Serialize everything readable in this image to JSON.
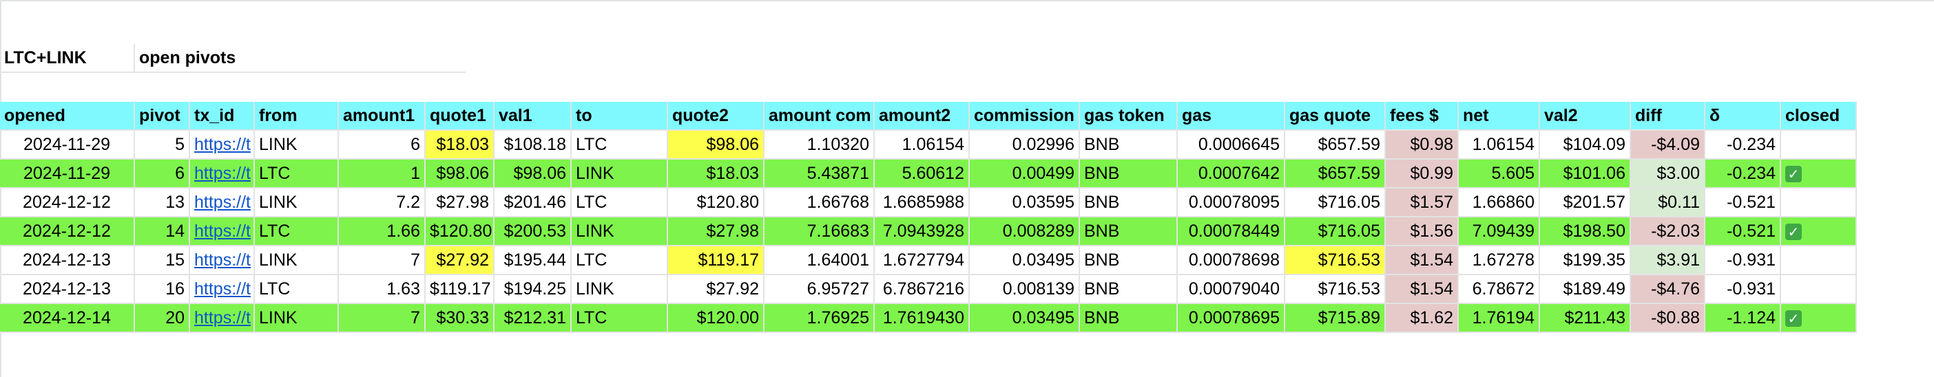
{
  "title": {
    "a": "LTC+LINK",
    "b": "open pivots"
  },
  "columns": [
    "opened",
    "pivot",
    "tx_id",
    "from",
    "amount1",
    "quote1",
    "val1",
    "to",
    "quote2",
    "amount com",
    "amount2",
    "commission",
    "gas token",
    "gas",
    "gas quote",
    "fees $",
    "net",
    "val2",
    "diff",
    "δ",
    "closed"
  ],
  "rows": [
    {
      "opened": "2024-11-29",
      "pivot": "5",
      "tx_id": "https://t",
      "from": "LINK",
      "amount1": "6",
      "quote1": "$18.03",
      "val1": "$108.18",
      "to": "LTC",
      "quote2": "$98.06",
      "amount_com": "1.10320",
      "amount2": "1.06154",
      "commission": "0.02996",
      "gas_token": "BNB",
      "gas": "0.0006645",
      "gas_quote": "$657.59",
      "fees": "$0.98",
      "net": "1.06154",
      "val2": "$104.09",
      "diff": "-$4.09",
      "delta": "-0.234",
      "closed": ""
    },
    {
      "opened": "2024-11-29",
      "pivot": "6",
      "tx_id": "https://t",
      "from": "LTC",
      "amount1": "1",
      "quote1": "$98.06",
      "val1": "$98.06",
      "to": "LINK",
      "quote2": "$18.03",
      "amount_com": "5.43871",
      "amount2": "5.60612",
      "commission": "0.00499",
      "gas_token": "BNB",
      "gas": "0.0007642",
      "gas_quote": "$657.59",
      "fees": "$0.99",
      "net": "5.605",
      "val2": "$101.06",
      "diff": "$3.00",
      "delta": "-0.234",
      "closed": "✓"
    },
    {
      "opened": "2024-12-12",
      "pivot": "13",
      "tx_id": "https://t",
      "from": "LINK",
      "amount1": "7.2",
      "quote1": "$27.98",
      "val1": "$201.46",
      "to": "LTC",
      "quote2": "$120.80",
      "amount_com": "1.66768",
      "amount2": "1.6685988",
      "commission": "0.03595",
      "gas_token": "BNB",
      "gas": "0.00078095",
      "gas_quote": "$716.05",
      "fees": "$1.57",
      "net": "1.66860",
      "val2": "$201.57",
      "diff": "$0.11",
      "delta": "-0.521",
      "closed": ""
    },
    {
      "opened": "2024-12-12",
      "pivot": "14",
      "tx_id": "https://t",
      "from": "LTC",
      "amount1": "1.66",
      "quote1": "$120.80",
      "val1": "$200.53",
      "to": "LINK",
      "quote2": "$27.98",
      "amount_com": "7.16683",
      "amount2": "7.0943928",
      "commission": "0.008289",
      "gas_token": "BNB",
      "gas": "0.00078449",
      "gas_quote": "$716.05",
      "fees": "$1.56",
      "net": "7.09439",
      "val2": "$198.50",
      "diff": "-$2.03",
      "delta": "-0.521",
      "closed": "✓"
    },
    {
      "opened": "2024-12-13",
      "pivot": "15",
      "tx_id": "https://t",
      "from": "LINK",
      "amount1": "7",
      "quote1": "$27.92",
      "val1": "$195.44",
      "to": "LTC",
      "quote2": "$119.17",
      "amount_com": "1.64001",
      "amount2": "1.6727794",
      "commission": "0.03495",
      "gas_token": "BNB",
      "gas": "0.00078698",
      "gas_quote": "$716.53",
      "fees": "$1.54",
      "net": "1.67278",
      "val2": "$199.35",
      "diff": "$3.91",
      "delta": "-0.931",
      "closed": ""
    },
    {
      "opened": "2024-12-13",
      "pivot": "16",
      "tx_id": "https://t",
      "from": "LTC",
      "amount1": "1.63",
      "quote1": "$119.17",
      "val1": "$194.25",
      "to": "LINK",
      "quote2": "$27.92",
      "amount_com": "6.95727",
      "amount2": "6.7867216",
      "commission": "0.008139",
      "gas_token": "BNB",
      "gas": "0.00079040",
      "gas_quote": "$716.53",
      "fees": "$1.54",
      "net": "6.78672",
      "val2": "$189.49",
      "diff": "-$4.76",
      "delta": "-0.931",
      "closed": ""
    },
    {
      "opened": "2024-12-14",
      "pivot": "20",
      "tx_id": "https://t",
      "from": "LINK",
      "amount1": "7",
      "quote1": "$30.33",
      "val1": "$212.31",
      "to": "LTC",
      "quote2": "$120.00",
      "amount_com": "1.76925",
      "amount2": "1.7619430",
      "commission": "0.03495",
      "gas_token": "BNB",
      "gas": "0.00078695",
      "gas_quote": "$715.89",
      "fees": "$1.62",
      "net": "1.76194",
      "val2": "$211.43",
      "diff": "-$0.88",
      "delta": "-1.124",
      "closed": "✓"
    }
  ],
  "colors": {
    "header_bg": "#7ff9fe",
    "green_row": "#7ef34b",
    "yellow_highlight": "#fdfd4c",
    "pink_fees": "#e6c9c9",
    "mint_diff": "#d8ecd4",
    "link": "#1155cc",
    "check": "#3fa845"
  },
  "icons": {
    "closed_check": "check-box-icon"
  }
}
